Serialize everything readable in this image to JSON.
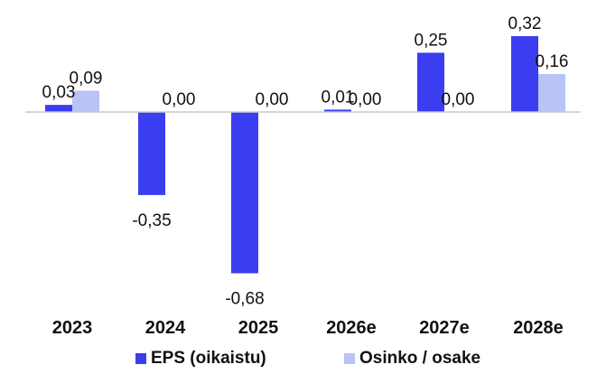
{
  "chart_data": {
    "type": "bar",
    "categories": [
      "2023",
      "2024",
      "2025",
      "2026e",
      "2027e",
      "2028e"
    ],
    "series": [
      {
        "name": "EPS (oikaistu)",
        "values": [
          0.03,
          -0.35,
          -0.68,
          0.01,
          0.25,
          0.32
        ],
        "labels": [
          "0,03",
          "-0,35",
          "-0,68",
          "0,01",
          "0,25",
          "0,32"
        ],
        "color": "#3b3df0"
      },
      {
        "name": "Osinko / osake",
        "values": [
          0.09,
          0.0,
          0.0,
          0.0,
          0.0,
          0.16
        ],
        "labels": [
          "0,09",
          "0,00",
          "0,00",
          "0,00",
          "0,00",
          "0,16"
        ],
        "color": "#b9c3f5"
      }
    ],
    "title": "",
    "xlabel": "",
    "ylabel": "",
    "ylim": [
      -0.68,
      0.32
    ],
    "legend": "bottom",
    "grid": false,
    "axis_color": "#c8c8c8"
  }
}
